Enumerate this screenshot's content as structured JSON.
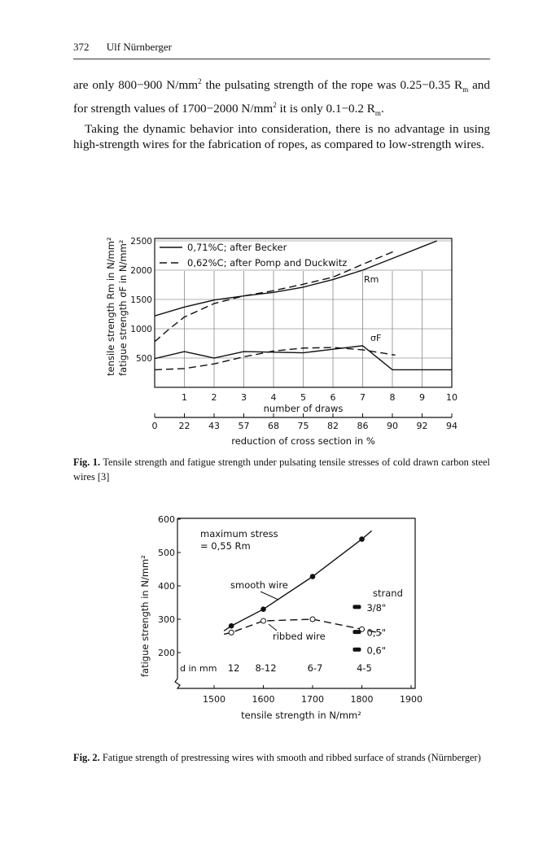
{
  "header": {
    "page_number": "372",
    "author": "Ulf Nürnberger"
  },
  "body": {
    "p1_a": "are only 800−900 N/mm",
    "p1_b": " the pulsating strength of the rope was 0.25−0.35 R",
    "p1_c": " and for strength values of 1700−2000 N/mm",
    "p1_d": " it is only 0.1−0.2 R",
    "p1_e": ".",
    "sup2": "2",
    "sub_m": "m",
    "p2": "Taking the dynamic behavior into consideration, there is no advantage in using high-strength wires for the fabrication of ropes, as compared to low-strength wires."
  },
  "figures": [
    {
      "label": "Fig. 1.",
      "caption": "Tensile strength and fatigue strength under pulsating tensile stresses of cold drawn carbon steel wires [3]"
    },
    {
      "label": "Fig. 2.",
      "caption": "Fatigue strength of prestressing wires with smooth and ribbed surface of strands (Nürnberger)"
    }
  ],
  "chart_data": [
    {
      "type": "line",
      "ylabel": "tensile strength Rm in N/mm² / fatigue strength σF in N/mm²",
      "ylabel_1": "tensile strength R",
      "ylabel_1_sub": "m",
      "ylabel_1_end": " in N/mm²",
      "ylabel_2": "fatigue strength σ",
      "ylabel_2_sub": "F",
      "ylabel_2_end": " in N/mm²",
      "xlabel": "number of draws",
      "x2label": "reduction of cross section in %",
      "xlim": [
        0,
        10
      ],
      "ylim": [
        0,
        2500
      ],
      "grid": true,
      "yticks": [
        500,
        1000,
        1500,
        2000,
        2500
      ],
      "xticks": [
        "1",
        "2",
        "3",
        "4",
        "5",
        "6",
        "7",
        "8",
        "9",
        "10"
      ],
      "x2ticks": [
        "0",
        "22",
        "43",
        "57",
        "68",
        "75",
        "82",
        "86",
        "90",
        "92",
        "94"
      ],
      "legend": [
        "0,71%C; after Becker",
        "0,62%C; after Pomp and Duckwitz"
      ],
      "legend_position": "top-left",
      "annotations": {
        "rm": "Rm",
        "sigma": "σF"
      },
      "series": [
        {
          "name": "0,71%C Rm",
          "style": "solid",
          "x": [
            0,
            1,
            2,
            3,
            4,
            5,
            6,
            7,
            8,
            9,
            9.5
          ],
          "y": [
            1220,
            1370,
            1490,
            1560,
            1620,
            1710,
            1840,
            2000,
            2200,
            2400,
            2500
          ]
        },
        {
          "name": "0,62%C Rm",
          "style": "dashed",
          "x": [
            0,
            0.5,
            1,
            2,
            3,
            4,
            5,
            6,
            7,
            8.1
          ],
          "y": [
            780,
            1000,
            1200,
            1430,
            1560,
            1650,
            1760,
            1880,
            2100,
            2330
          ]
        },
        {
          "name": "0,71%C σF",
          "style": "solid",
          "x": [
            0,
            1,
            2,
            3,
            4,
            5,
            6,
            7,
            8,
            10
          ],
          "y": [
            490,
            610,
            500,
            610,
            600,
            590,
            650,
            710,
            300,
            300
          ]
        },
        {
          "name": "0,62%C σF",
          "style": "dashed",
          "x": [
            0,
            1,
            2,
            3,
            4,
            5,
            6,
            7,
            8.1
          ],
          "y": [
            300,
            320,
            400,
            520,
            620,
            670,
            680,
            640,
            550
          ]
        }
      ]
    },
    {
      "type": "scatter",
      "xlabel": "tensile strength in N/mm²",
      "ylabel": "fatigue strength in N/mm²",
      "xlim": [
        1440,
        1900
      ],
      "ylim": [
        92,
        600
      ],
      "xticks": [
        1500,
        1600,
        1700,
        1800,
        1900
      ],
      "yticks": [
        200,
        300,
        400,
        500,
        600
      ],
      "note_1": "maximum stress",
      "note_2": "= 0,55 R",
      "note_2_sub": "m",
      "d_label": "d in mm",
      "d_values": [
        {
          "x": 1535,
          "label": "12"
        },
        {
          "x": 1600,
          "label": "8-12"
        },
        {
          "x": 1700,
          "label": "6-7"
        },
        {
          "x": 1800,
          "label": "4-5"
        }
      ],
      "series": [
        {
          "name": "smooth wire",
          "style": "solid",
          "marker": "filled",
          "x": [
            1535,
            1600,
            1700,
            1800
          ],
          "y": [
            280,
            330,
            428,
            540
          ],
          "line_ends": [
            [
              1520,
              265
            ],
            [
              1820,
              565
            ]
          ]
        },
        {
          "name": "ribbed wire",
          "style": "dashed",
          "marker": "open",
          "x": [
            1535,
            1600,
            1700,
            1800
          ],
          "y": [
            260,
            295,
            300,
            270
          ]
        }
      ],
      "strand_title": "strand",
      "strands": [
        {
          "label": "3/8\"",
          "x": 1790,
          "y": 337
        },
        {
          "label": "0,5\"",
          "x": 1790,
          "y": 262
        },
        {
          "label": "0,6\"",
          "x": 1790,
          "y": 209
        }
      ]
    }
  ]
}
